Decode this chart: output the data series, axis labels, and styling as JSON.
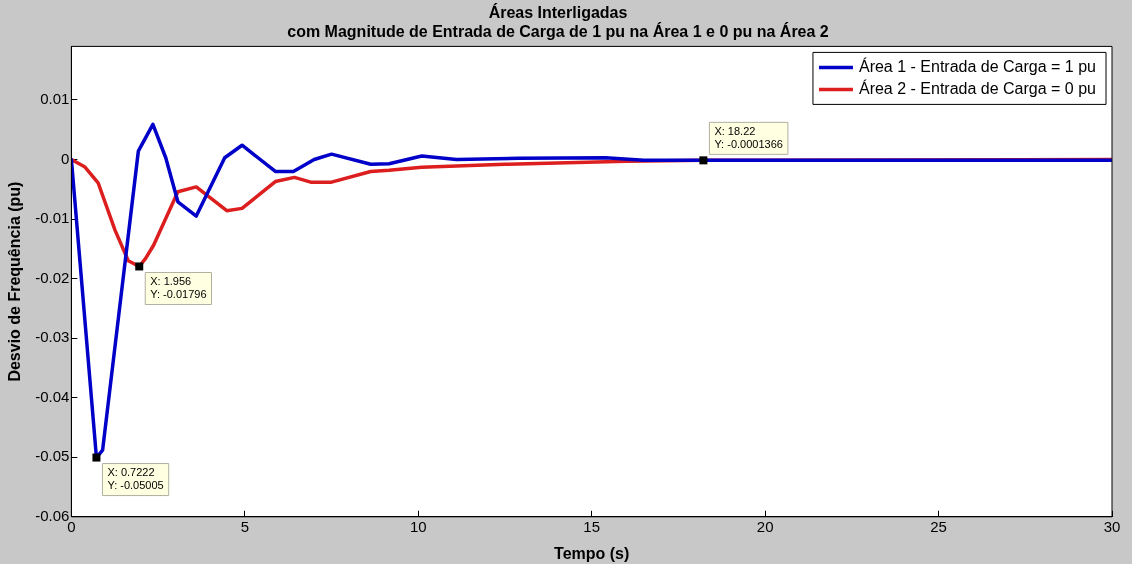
{
  "chart_data": {
    "type": "line",
    "title": "Áreas Interligadas",
    "subtitle": "com Magnitude de Entrada de Carga de 1 pu na Área 1 e 0 pu na Área 2",
    "xlabel": "Tempo (s)",
    "ylabel": "Desvio de Frequência (pu)",
    "xlim": [
      0,
      30
    ],
    "xticks": [
      0,
      5,
      10,
      15,
      20,
      25,
      30
    ],
    "ylim": [
      -0.06,
      0.019
    ],
    "yticks": [
      -0.06,
      -0.05,
      -0.04,
      -0.03,
      -0.02,
      -0.01,
      0,
      0.01
    ],
    "grid": false,
    "legend": "top right",
    "marker": "none",
    "line_style": "solid",
    "series": [
      {
        "name": "Área 1 - Entrada de Carga = 1 pu",
        "color": "#0000c8",
        "x": [
          0,
          0.7222,
          0.9,
          1.93,
          2.35,
          2.72,
          3.07,
          3.6,
          4.42,
          4.92,
          5.88,
          6.4,
          7.0,
          7.5,
          8.63,
          9.16,
          10.1,
          11.1,
          12.9,
          15.4,
          16.5,
          30
        ],
        "values": [
          0,
          -0.05005,
          -0.0488,
          0.0014,
          0.0059,
          0.0003,
          -0.0071,
          -0.0095,
          0.0003,
          0.0024,
          -0.002,
          -0.002,
          0,
          0.0009,
          -0.0008,
          -0.0007,
          0.0006,
          0,
          0.0002,
          0.0003,
          -0.0001,
          -0.0001
        ]
      },
      {
        "name": "Área 2 - Entrada de Carga = 0 pu",
        "color": "#dc1e1e",
        "x": [
          0,
          0.38,
          0.77,
          1.26,
          1.64,
          1.956,
          2.14,
          2.37,
          3.07,
          3.6,
          4.48,
          4.92,
          5.88,
          6.43,
          6.9,
          7.5,
          8.63,
          9.16,
          10.1,
          12.5,
          16,
          18.22,
          30
        ],
        "values": [
          0,
          -0.0012,
          -0.0039,
          -0.0119,
          -0.017,
          -0.01796,
          -0.0166,
          -0.0144,
          -0.0054,
          -0.0046,
          -0.0086,
          -0.0082,
          -0.0037,
          -0.003,
          -0.0038,
          -0.0038,
          -0.002,
          -0.0018,
          -0.0013,
          -0.0008,
          -0.0003,
          -0.0001366,
          0
        ]
      }
    ],
    "annotations": [
      {
        "text": "X: 0.7222\nY: -0.05005",
        "x": 0.7222,
        "y": -0.05005
      },
      {
        "text": "X: 1.956\nY: -0.01796",
        "x": 1.956,
        "y": -0.01796
      },
      {
        "text": "X: 18.22\nY: -0.0001366",
        "x": 18.22,
        "y": -0.0001366
      }
    ]
  }
}
